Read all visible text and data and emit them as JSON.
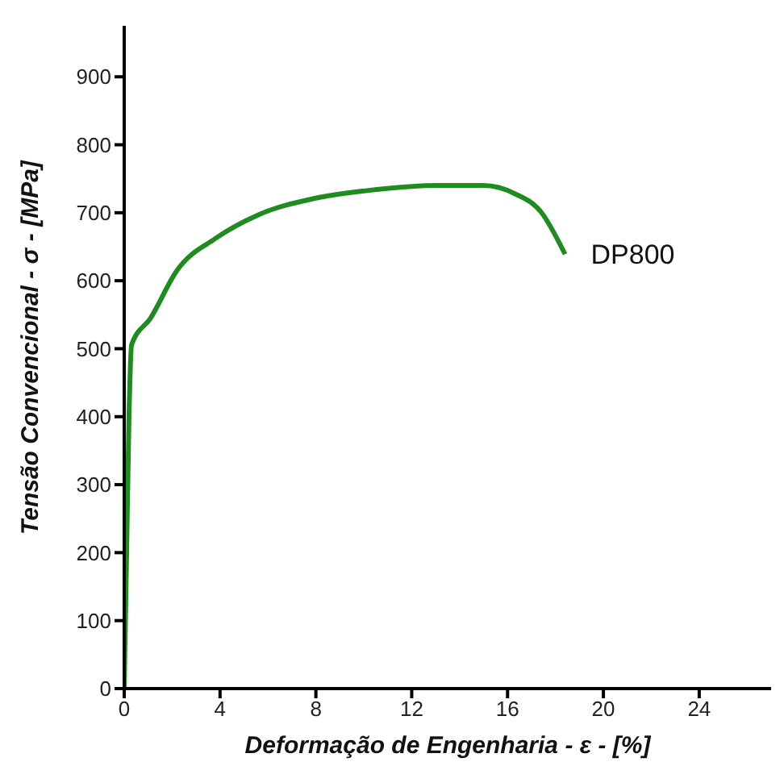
{
  "chart_data": {
    "type": "line",
    "xlabel": "Deformação de Engenharia - ε - [%]",
    "ylabel": "Tensão Convencional - σ - [MPa]",
    "xlim": [
      0,
      27
    ],
    "xticks": [
      0,
      4,
      8,
      12,
      16,
      20,
      24
    ],
    "ylim": [
      0,
      975
    ],
    "yticks": [
      0,
      100,
      200,
      300,
      400,
      500,
      600,
      700,
      800,
      900
    ],
    "grid": false,
    "legend": false,
    "marker": "none",
    "line_style": "solid",
    "series": [
      {
        "name": "DP800",
        "color": "#1e8c1e",
        "x": [
          0,
          0.1,
          0.2,
          0.31,
          1.1,
          2.2,
          3.8,
          5.6,
          7.8,
          10.0,
          13.1,
          15.0,
          16.3,
          17.4,
          18.4
        ],
        "values": [
          0,
          200,
          400,
          506,
          545,
          615,
          662,
          697,
          720,
          732,
          740,
          740,
          728,
          701,
          639
        ]
      }
    ]
  }
}
